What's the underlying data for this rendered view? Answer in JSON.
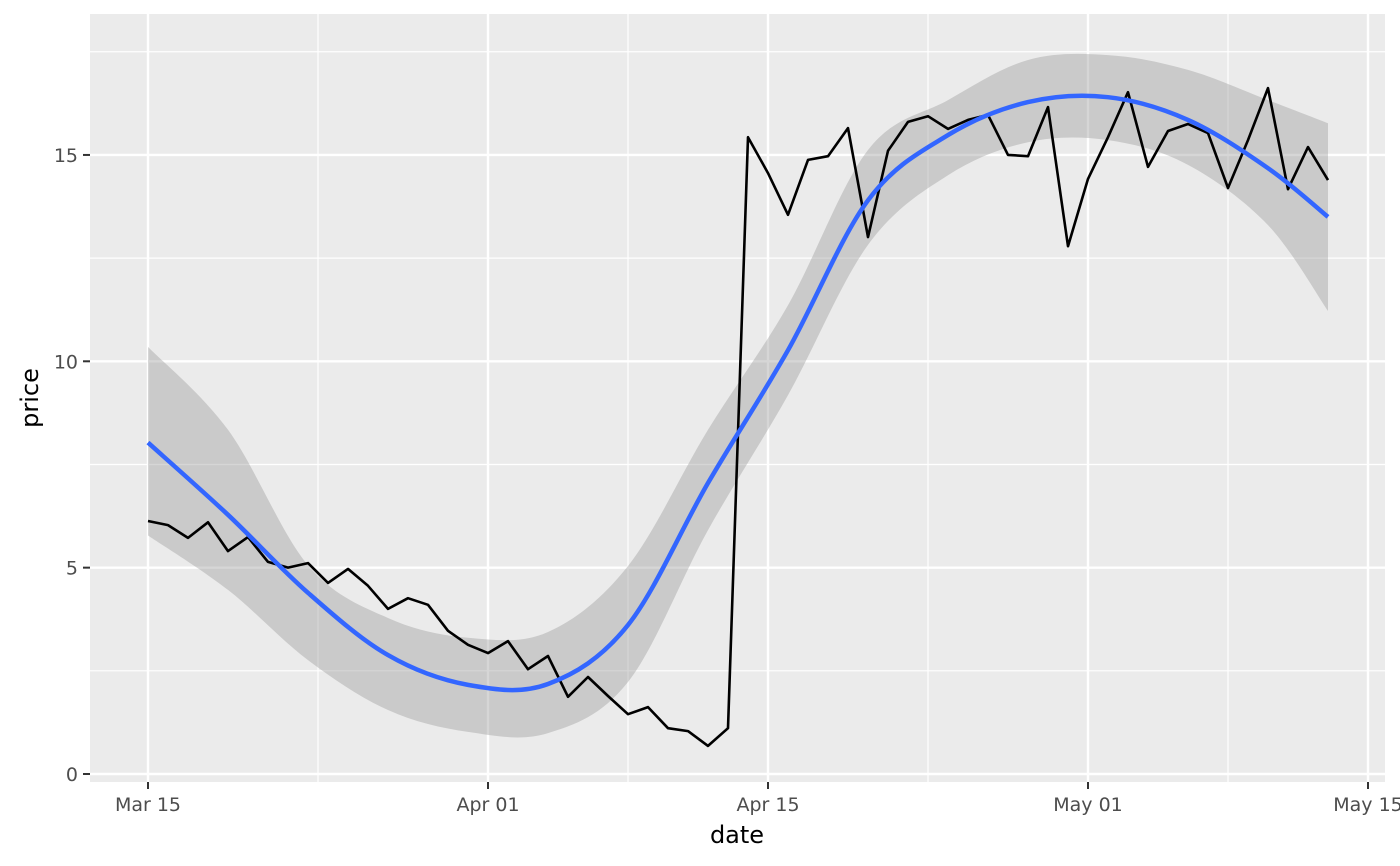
{
  "chart_data": {
    "type": "line",
    "title": "",
    "xlabel": "date",
    "ylabel": "price",
    "x_ticks": [
      "Mar 15",
      "Apr 01",
      "Apr 15",
      "May 01",
      "May 15"
    ],
    "y_ticks": [
      0,
      5,
      10,
      15
    ],
    "xlim": [
      "Mar 12",
      "May 17"
    ],
    "ylim": [
      -0.2,
      18.4
    ],
    "grid": true,
    "colors": {
      "panel": "#EBEBEB",
      "grid": "#FFFFFF",
      "line": "#000000",
      "smooth": "#3366FF",
      "ribbon": "#CCCCCC"
    },
    "series": [
      {
        "type": "line",
        "start_date": "Mar 15",
        "step_days": 1,
        "values": [
          6.13,
          6.03,
          5.72,
          6.1,
          5.4,
          5.74,
          5.14,
          5.0,
          5.11,
          4.63,
          4.97,
          4.56,
          4.0,
          4.26,
          4.1,
          3.47,
          3.13,
          2.93,
          3.22,
          2.54,
          2.86,
          1.87,
          2.35,
          1.89,
          1.45,
          1.62,
          1.11,
          1.04,
          0.68,
          1.11,
          15.43,
          14.56,
          13.55,
          14.88,
          14.97,
          15.65,
          13.01,
          15.1,
          15.8,
          15.94,
          15.63,
          15.85,
          15.97,
          15.0,
          14.97,
          16.16,
          12.79,
          14.42,
          15.43,
          16.52,
          14.71,
          15.58,
          15.75,
          15.53,
          14.2,
          15.36,
          16.62,
          14.17,
          15.19,
          14.39
        ]
      },
      {
        "type": "smooth",
        "method": "loess",
        "dates": [
          "Mar 15",
          "Mar 19",
          "Mar 23",
          "Mar 27",
          "Mar 31",
          "Apr 04",
          "Apr 08",
          "Apr 12",
          "Apr 16",
          "Apr 20",
          "Apr 24",
          "Apr 28",
          "May 02",
          "May 06",
          "May 10",
          "May 13"
        ],
        "fit": [
          8.03,
          6.28,
          4.39,
          2.88,
          2.16,
          2.18,
          3.61,
          7.05,
          10.27,
          13.9,
          15.48,
          16.28,
          16.4,
          15.85,
          14.68,
          13.5
        ],
        "lower": [
          5.78,
          4.46,
          2.76,
          1.55,
          1.02,
          0.99,
          2.23,
          5.91,
          9.18,
          12.82,
          14.51,
          15.31,
          15.36,
          14.76,
          13.3,
          11.22
        ],
        "upper": [
          10.35,
          8.34,
          5.06,
          3.78,
          3.3,
          3.44,
          5.04,
          8.34,
          11.36,
          15.12,
          16.33,
          17.3,
          17.42,
          17.06,
          16.33,
          15.77
        ]
      }
    ]
  }
}
